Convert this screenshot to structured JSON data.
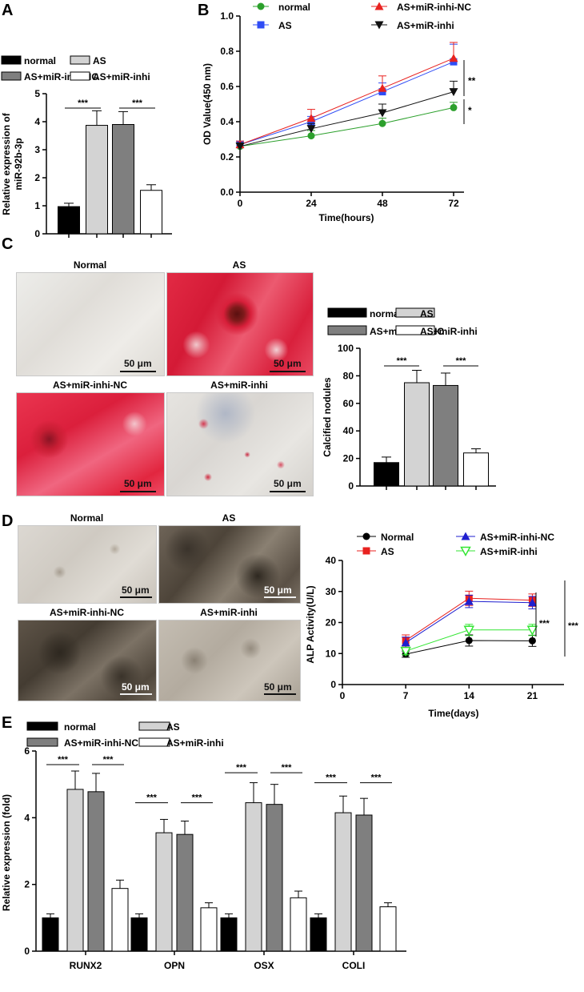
{
  "panels": {
    "A": "A",
    "B": "B",
    "C": "C",
    "D": "D",
    "E": "E"
  },
  "colors": {
    "normal": "#000000",
    "as": "#d3d3d3",
    "nc": "#7f7f7f",
    "inhi": "#ffffff",
    "line_normal": "#2ca02c",
    "line_as": "#2f4cf5",
    "line_nc": "#e8221f",
    "line_inhi": "#111111",
    "alp_normal": "#000000",
    "alp_as": "#e8221f",
    "alp_nc": "#1f1fcf",
    "alp_inhi": "#33e633"
  },
  "bar_legend": {
    "normal": "normal",
    "as": "AS",
    "nc": "AS+miR-inhi-NC",
    "inhi": "AS+miR-inhi"
  },
  "micro_C": {
    "titles": [
      "Normal",
      "AS",
      "AS+miR-inhi-NC",
      "AS+miR-inhi"
    ],
    "scale": "50 μm"
  },
  "micro_D": {
    "titles": [
      "Normal",
      "AS",
      "AS+miR-inhi-NC",
      "AS+miR-inhi"
    ],
    "scale": "50 μm"
  },
  "chart_data": [
    {
      "id": "A",
      "type": "bar",
      "ylabel": "Relative  expression of\nmiR-92b-3p",
      "ylim": [
        0,
        5
      ],
      "yticks": [
        0,
        1,
        2,
        3,
        4,
        5
      ],
      "categories": [
        "normal",
        "AS",
        "AS+miR-inhi-NC",
        "AS+miR-inhi"
      ],
      "values": [
        0.97,
        3.87,
        3.9,
        1.55
      ],
      "errors": [
        0.12,
        0.52,
        0.46,
        0.2
      ],
      "significance": [
        {
          "between": [
            0,
            1
          ],
          "label": "***"
        },
        {
          "between": [
            2,
            3
          ],
          "label": "***"
        }
      ]
    },
    {
      "id": "B",
      "type": "line",
      "xlabel": "Time(hours)",
      "ylabel": "OD Value(450 nm)",
      "x": [
        0,
        24,
        48,
        72
      ],
      "xticks": [
        0,
        24,
        48,
        72
      ],
      "ylim": [
        0.0,
        1.0
      ],
      "yticks": [
        0.0,
        0.2,
        0.4,
        0.6,
        0.8,
        1.0
      ],
      "series": [
        {
          "name": "normal",
          "marker": "circle",
          "values": [
            0.26,
            0.32,
            0.39,
            0.48
          ],
          "errors": [
            0.02,
            0.03,
            0.03,
            0.03
          ]
        },
        {
          "name": "AS",
          "marker": "square",
          "values": [
            0.27,
            0.4,
            0.57,
            0.74
          ],
          "errors": [
            0.02,
            0.03,
            0.05,
            0.1
          ]
        },
        {
          "name": "AS+miR-inhi-NC",
          "marker": "triangle-up",
          "values": [
            0.27,
            0.42,
            0.59,
            0.76
          ],
          "errors": [
            0.02,
            0.05,
            0.07,
            0.09
          ]
        },
        {
          "name": "AS+miR-inhi",
          "marker": "triangle-down",
          "values": [
            0.26,
            0.36,
            0.45,
            0.57
          ],
          "errors": [
            0.02,
            0.03,
            0.05,
            0.06
          ]
        }
      ],
      "significance": [
        {
          "label": "**"
        },
        {
          "label": "*"
        }
      ]
    },
    {
      "id": "C",
      "type": "bar",
      "ylabel": "Calcified nodules",
      "ylim": [
        0,
        100
      ],
      "yticks": [
        0,
        20,
        40,
        60,
        80,
        100
      ],
      "categories": [
        "normal",
        "AS",
        "AS+miR-inhi-NC",
        "AS+miR-inhi"
      ],
      "values": [
        17,
        75,
        73,
        24
      ],
      "errors": [
        4,
        9,
        9,
        3
      ],
      "significance": [
        {
          "between": [
            0,
            1
          ],
          "label": "***"
        },
        {
          "between": [
            2,
            3
          ],
          "label": "***"
        }
      ]
    },
    {
      "id": "D",
      "type": "line",
      "xlabel": "Time(days)",
      "ylabel": "ALP Activity(U/L)",
      "x": [
        7,
        14,
        21
      ],
      "xticks": [
        0,
        7,
        14,
        21
      ],
      "xlim": [
        0,
        24.5
      ],
      "ylim": [
        0,
        40
      ],
      "yticks": [
        0,
        10,
        20,
        30,
        40
      ],
      "series": [
        {
          "name": "Normal",
          "marker": "circle",
          "values": [
            9.8,
            14.2,
            14.1
          ],
          "errors": [
            1.0,
            1.8,
            1.8
          ]
        },
        {
          "name": "AS",
          "marker": "square",
          "values": [
            14.2,
            27.8,
            27.2
          ],
          "errors": [
            1.8,
            2.3,
            2.0
          ]
        },
        {
          "name": "AS+miR-inhi-NC",
          "marker": "triangle-up",
          "values": [
            13.5,
            26.8,
            26.4
          ],
          "errors": [
            1.8,
            2.0,
            2.0
          ]
        },
        {
          "name": "AS+miR-inhi",
          "marker": "triangle-down-open",
          "values": [
            10.8,
            17.6,
            17.6
          ],
          "errors": [
            1.2,
            1.8,
            1.8
          ]
        }
      ],
      "significance": [
        {
          "label": "***"
        },
        {
          "label": "***"
        }
      ]
    },
    {
      "id": "E",
      "type": "bar",
      "ylabel": "Relative expression (fold)",
      "ylim": [
        0,
        6
      ],
      "yticks": [
        0,
        2,
        4,
        6
      ],
      "categories": [
        "RUNX2",
        "OPN",
        "OSX",
        "COLI"
      ],
      "series": [
        {
          "name": "normal",
          "values": [
            1.0,
            1.0,
            1.0,
            1.0
          ],
          "errors": [
            0.12,
            0.12,
            0.12,
            0.12
          ]
        },
        {
          "name": "AS",
          "values": [
            4.85,
            3.55,
            4.45,
            4.15
          ],
          "errors": [
            0.55,
            0.4,
            0.6,
            0.5
          ]
        },
        {
          "name": "AS+miR-inhi-NC",
          "values": [
            4.78,
            3.5,
            4.4,
            4.08
          ],
          "errors": [
            0.55,
            0.4,
            0.6,
            0.5
          ]
        },
        {
          "name": "AS+miR-inhi",
          "values": [
            1.88,
            1.3,
            1.6,
            1.33
          ],
          "errors": [
            0.25,
            0.15,
            0.2,
            0.12
          ]
        }
      ],
      "significance_label": "***"
    }
  ]
}
